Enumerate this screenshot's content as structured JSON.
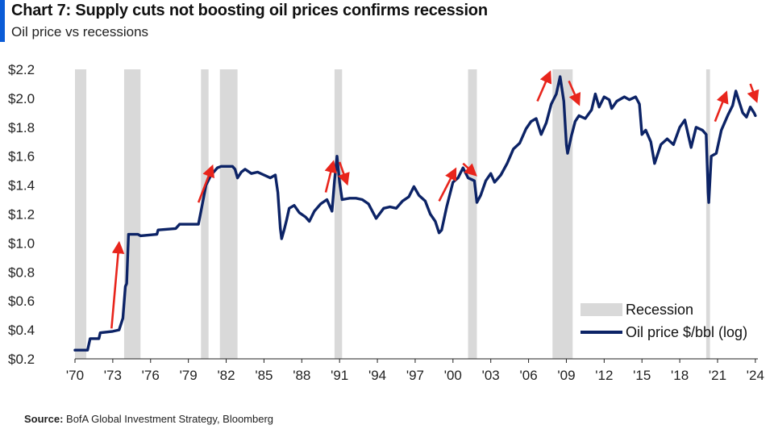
{
  "header": {
    "title": "Chart 7: Supply cuts not boosting oil prices confirms recession",
    "subtitle": "Oil price vs recessions"
  },
  "source": {
    "label": "Source:",
    "text": "BofA Global Investment Strategy, Bloomberg"
  },
  "colors": {
    "accent": "#0b5cd7",
    "line": "#0c2366",
    "recession": "#d9d9d9",
    "arrow": "#e8251c"
  },
  "chart_data": {
    "type": "line",
    "title": "Chart 7: Supply cuts not boosting oil prices confirms recession",
    "subtitle": "Oil price vs recessions",
    "xlim": [
      1970,
      2024.2
    ],
    "ylim": [
      0.2,
      2.2
    ],
    "x_ticks": [
      {
        "value": 1970,
        "label": "'70"
      },
      {
        "value": 1973,
        "label": "'73"
      },
      {
        "value": 1976,
        "label": "'76"
      },
      {
        "value": 1979,
        "label": "'79"
      },
      {
        "value": 1982,
        "label": "'82"
      },
      {
        "value": 1985,
        "label": "'85"
      },
      {
        "value": 1988,
        "label": "'88"
      },
      {
        "value": 1991,
        "label": "'91"
      },
      {
        "value": 1994,
        "label": "'94"
      },
      {
        "value": 1997,
        "label": "'97"
      },
      {
        "value": 2000,
        "label": "'00"
      },
      {
        "value": 2003,
        "label": "'03"
      },
      {
        "value": 2006,
        "label": "'06"
      },
      {
        "value": 2009,
        "label": "'09"
      },
      {
        "value": 2012,
        "label": "'12"
      },
      {
        "value": 2015,
        "label": "'15"
      },
      {
        "value": 2018,
        "label": "'18"
      },
      {
        "value": 2021,
        "label": "'21"
      },
      {
        "value": 2024,
        "label": "'24"
      }
    ],
    "y_ticks": [
      {
        "value": 0.2,
        "label": "$0.2"
      },
      {
        "value": 0.4,
        "label": "$0.4"
      },
      {
        "value": 0.6,
        "label": "$0.6"
      },
      {
        "value": 0.8,
        "label": "$0.8"
      },
      {
        "value": 1.0,
        "label": "$1.0"
      },
      {
        "value": 1.2,
        "label": "$1.2"
      },
      {
        "value": 1.4,
        "label": "$1.4"
      },
      {
        "value": 1.6,
        "label": "$1.6"
      },
      {
        "value": 1.8,
        "label": "$1.8"
      },
      {
        "value": 2.0,
        "label": "$2.0"
      },
      {
        "value": 2.2,
        "label": "$2.2"
      }
    ],
    "grid": false,
    "legend_position": "bottom-right",
    "recessions": [
      [
        1970.0,
        1970.9
      ],
      [
        1973.9,
        1975.2
      ],
      [
        1980.0,
        1980.6
      ],
      [
        1981.5,
        1982.9
      ],
      [
        1990.6,
        1991.2
      ],
      [
        2001.2,
        2001.9
      ],
      [
        2007.9,
        2009.5
      ],
      [
        2020.1,
        2020.4
      ]
    ],
    "series": [
      {
        "name": "Oil price $/bbl (log)",
        "points": [
          [
            1970.0,
            0.26
          ],
          [
            1971.0,
            0.26
          ],
          [
            1971.2,
            0.34
          ],
          [
            1971.9,
            0.34
          ],
          [
            1972.0,
            0.38
          ],
          [
            1973.0,
            0.39
          ],
          [
            1973.5,
            0.4
          ],
          [
            1973.8,
            0.48
          ],
          [
            1974.0,
            0.7
          ],
          [
            1974.1,
            0.72
          ],
          [
            1974.25,
            1.06
          ],
          [
            1975.0,
            1.06
          ],
          [
            1975.2,
            1.05
          ],
          [
            1976.5,
            1.06
          ],
          [
            1976.6,
            1.09
          ],
          [
            1978.0,
            1.1
          ],
          [
            1978.3,
            1.13
          ],
          [
            1979.8,
            1.13
          ],
          [
            1980.0,
            1.22
          ],
          [
            1980.4,
            1.4
          ],
          [
            1980.8,
            1.47
          ],
          [
            1981.3,
            1.52
          ],
          [
            1981.6,
            1.53
          ],
          [
            1982.5,
            1.53
          ],
          [
            1982.7,
            1.51
          ],
          [
            1982.9,
            1.45
          ],
          [
            1983.2,
            1.49
          ],
          [
            1983.5,
            1.51
          ],
          [
            1984.0,
            1.48
          ],
          [
            1984.5,
            1.49
          ],
          [
            1985.0,
            1.47
          ],
          [
            1985.5,
            1.45
          ],
          [
            1985.9,
            1.47
          ],
          [
            1986.1,
            1.35
          ],
          [
            1986.3,
            1.1
          ],
          [
            1986.4,
            1.03
          ],
          [
            1986.6,
            1.09
          ],
          [
            1986.8,
            1.16
          ],
          [
            1987.0,
            1.24
          ],
          [
            1987.4,
            1.26
          ],
          [
            1987.8,
            1.21
          ],
          [
            1988.3,
            1.18
          ],
          [
            1988.6,
            1.15
          ],
          [
            1989.0,
            1.22
          ],
          [
            1989.5,
            1.27
          ],
          [
            1990.0,
            1.3
          ],
          [
            1990.4,
            1.22
          ],
          [
            1990.6,
            1.43
          ],
          [
            1990.8,
            1.6
          ],
          [
            1991.0,
            1.42
          ],
          [
            1991.2,
            1.3
          ],
          [
            1991.8,
            1.31
          ],
          [
            1992.3,
            1.31
          ],
          [
            1992.8,
            1.3
          ],
          [
            1993.3,
            1.27
          ],
          [
            1993.9,
            1.17
          ],
          [
            1994.5,
            1.24
          ],
          [
            1995.0,
            1.25
          ],
          [
            1995.5,
            1.24
          ],
          [
            1996.0,
            1.29
          ],
          [
            1996.5,
            1.32
          ],
          [
            1996.9,
            1.39
          ],
          [
            1997.3,
            1.33
          ],
          [
            1997.8,
            1.29
          ],
          [
            1998.2,
            1.2
          ],
          [
            1998.6,
            1.15
          ],
          [
            1998.9,
            1.07
          ],
          [
            1999.1,
            1.09
          ],
          [
            1999.5,
            1.25
          ],
          [
            2000.0,
            1.42
          ],
          [
            2000.4,
            1.45
          ],
          [
            2000.8,
            1.52
          ],
          [
            2001.2,
            1.45
          ],
          [
            2001.7,
            1.43
          ],
          [
            2001.9,
            1.28
          ],
          [
            2002.2,
            1.33
          ],
          [
            2002.6,
            1.43
          ],
          [
            2003.0,
            1.48
          ],
          [
            2003.3,
            1.42
          ],
          [
            2003.8,
            1.47
          ],
          [
            2004.3,
            1.55
          ],
          [
            2004.8,
            1.65
          ],
          [
            2005.3,
            1.69
          ],
          [
            2005.8,
            1.79
          ],
          [
            2006.2,
            1.84
          ],
          [
            2006.6,
            1.86
          ],
          [
            2007.0,
            1.75
          ],
          [
            2007.4,
            1.83
          ],
          [
            2007.8,
            1.96
          ],
          [
            2008.2,
            2.03
          ],
          [
            2008.5,
            2.15
          ],
          [
            2008.8,
            1.98
          ],
          [
            2009.0,
            1.68
          ],
          [
            2009.1,
            1.62
          ],
          [
            2009.4,
            1.74
          ],
          [
            2009.7,
            1.84
          ],
          [
            2010.0,
            1.88
          ],
          [
            2010.5,
            1.86
          ],
          [
            2011.0,
            1.92
          ],
          [
            2011.3,
            2.03
          ],
          [
            2011.6,
            1.94
          ],
          [
            2012.0,
            2.01
          ],
          [
            2012.4,
            1.99
          ],
          [
            2012.6,
            1.93
          ],
          [
            2013.0,
            1.98
          ],
          [
            2013.6,
            2.01
          ],
          [
            2014.0,
            1.99
          ],
          [
            2014.5,
            2.01
          ],
          [
            2014.8,
            1.96
          ],
          [
            2015.0,
            1.75
          ],
          [
            2015.3,
            1.78
          ],
          [
            2015.7,
            1.7
          ],
          [
            2016.0,
            1.55
          ],
          [
            2016.5,
            1.68
          ],
          [
            2017.0,
            1.72
          ],
          [
            2017.5,
            1.68
          ],
          [
            2018.0,
            1.8
          ],
          [
            2018.4,
            1.85
          ],
          [
            2018.9,
            1.66
          ],
          [
            2019.3,
            1.8
          ],
          [
            2019.8,
            1.78
          ],
          [
            2020.1,
            1.75
          ],
          [
            2020.25,
            1.35
          ],
          [
            2020.3,
            1.28
          ],
          [
            2020.5,
            1.6
          ],
          [
            2020.9,
            1.62
          ],
          [
            2021.3,
            1.78
          ],
          [
            2021.8,
            1.88
          ],
          [
            2022.2,
            1.95
          ],
          [
            2022.45,
            2.05
          ],
          [
            2022.7,
            1.98
          ],
          [
            2023.0,
            1.9
          ],
          [
            2023.3,
            1.87
          ],
          [
            2023.6,
            1.94
          ],
          [
            2023.9,
            1.9
          ],
          [
            2024.0,
            1.88
          ]
        ]
      }
    ],
    "legend": [
      {
        "label": "Recession",
        "kind": "box"
      },
      {
        "label": "Oil price $/bbl (log)",
        "kind": "line"
      }
    ],
    "annotations": [
      {
        "kind": "arrow-up",
        "from": [
          1972.9,
          0.41
        ],
        "to": [
          1973.5,
          1.0
        ]
      },
      {
        "kind": "arrow-up",
        "from": [
          1979.8,
          1.28
        ],
        "to": [
          1980.9,
          1.53
        ]
      },
      {
        "kind": "arrow-up",
        "from": [
          1989.9,
          1.35
        ],
        "to": [
          1990.5,
          1.56
        ]
      },
      {
        "kind": "arrow-down",
        "from": [
          1991.0,
          1.56
        ],
        "to": [
          1991.6,
          1.41
        ]
      },
      {
        "kind": "arrow-up",
        "from": [
          1998.9,
          1.29
        ],
        "to": [
          2000.2,
          1.51
        ]
      },
      {
        "kind": "arrow-down",
        "from": [
          2000.8,
          1.55
        ],
        "to": [
          2001.8,
          1.47
        ]
      },
      {
        "kind": "arrow-up",
        "from": [
          2006.7,
          1.98
        ],
        "to": [
          2007.7,
          2.18
        ]
      },
      {
        "kind": "arrow-down",
        "from": [
          2009.2,
          2.12
        ],
        "to": [
          2010.0,
          1.96
        ]
      },
      {
        "kind": "arrow-up",
        "from": [
          2020.8,
          1.84
        ],
        "to": [
          2021.7,
          2.04
        ]
      },
      {
        "kind": "arrow-down",
        "from": [
          2023.6,
          2.1
        ],
        "to": [
          2024.1,
          1.98
        ]
      }
    ]
  }
}
